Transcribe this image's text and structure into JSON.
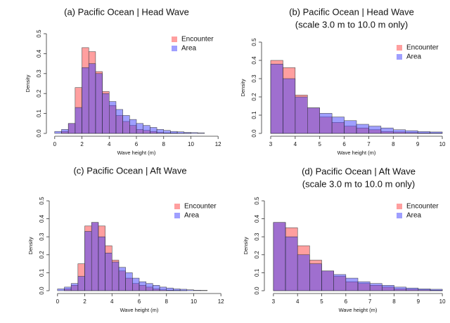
{
  "chart_data": [
    {
      "type": "histogram",
      "title": "(a)  Pacific Ocean | Head Wave",
      "x_label": "Wave height (m)",
      "y_label": "Density",
      "bins": [
        0,
        0.5,
        1,
        1.5,
        2,
        2.5,
        3,
        3.5,
        4,
        4.5,
        5,
        5.5,
        6,
        6.5,
        7,
        7.5,
        8,
        8.5,
        9,
        9.5,
        10,
        10.5,
        11
      ],
      "series": [
        {
          "name": "Encounter",
          "color": "#ff4040",
          "values": [
            0,
            0.01,
            0.05,
            0.23,
            0.43,
            0.41,
            0.31,
            0.21,
            0.14,
            0.09,
            0.06,
            0.04,
            0.02,
            0.015,
            0.01,
            0.005,
            0.003,
            0.002,
            0.001,
            0.001,
            0,
            0
          ]
        },
        {
          "name": "Area",
          "color": "#4040ff",
          "values": [
            0.01,
            0.02,
            0.05,
            0.13,
            0.33,
            0.35,
            0.3,
            0.2,
            0.16,
            0.12,
            0.09,
            0.07,
            0.05,
            0.04,
            0.03,
            0.02,
            0.015,
            0.01,
            0.008,
            0.005,
            0.004,
            0.003
          ]
        }
      ],
      "xlim": [
        -0.3,
        12.3
      ],
      "xticks": [
        0,
        2,
        4,
        6,
        8,
        10,
        12
      ],
      "ylim": [
        0,
        0.5
      ],
      "yticks": [
        {
          "value": 0,
          "label": "0.0"
        },
        0.1,
        0.2,
        0.3,
        0.4,
        0.5
      ],
      "legend": "top-right"
    },
    {
      "type": "histogram",
      "title": "(b) Pacific Ocean | Head Wave",
      "subtitle": "(scale 3.0 m to 10.0 m only)",
      "x_label": "Wave height (m)",
      "y_label": "Density",
      "bins": [
        3,
        3.5,
        4,
        4.5,
        5,
        5.5,
        6,
        6.5,
        7,
        7.5,
        8,
        8.5,
        9,
        9.5,
        10
      ],
      "series": [
        {
          "name": "Encounter",
          "color": "#ff4040",
          "values": [
            0.4,
            0.36,
            0.21,
            0.14,
            0.09,
            0.06,
            0.04,
            0.03,
            0.02,
            0.01,
            0.008,
            0.005,
            0.003,
            0.002
          ]
        },
        {
          "name": "Area",
          "color": "#4040ff",
          "values": [
            0.38,
            0.3,
            0.2,
            0.14,
            0.11,
            0.09,
            0.07,
            0.05,
            0.04,
            0.03,
            0.02,
            0.015,
            0.01,
            0.008
          ]
        }
      ],
      "xlim": [
        2.8,
        10.2
      ],
      "xticks": [
        3,
        4,
        5,
        6,
        7,
        8,
        9,
        10
      ],
      "ylim": [
        0,
        0.5
      ],
      "yticks": [
        {
          "value": 0,
          "label": "0.0"
        },
        0.1,
        0.2,
        0.3,
        0.4,
        0.5
      ],
      "legend": "top-right"
    },
    {
      "type": "histogram",
      "title": "(c) Pacific Ocean | Aft Wave",
      "x_label": "Wave height (m)",
      "y_label": "Density",
      "bins": [
        0,
        0.5,
        1,
        1.5,
        2,
        2.5,
        3,
        3.5,
        4,
        4.5,
        5,
        5.5,
        6,
        6.5,
        7,
        7.5,
        8,
        8.5,
        9,
        9.5,
        10,
        10.5,
        11
      ],
      "series": [
        {
          "name": "Encounter",
          "color": "#ff4040",
          "values": [
            0,
            0.01,
            0.03,
            0.15,
            0.36,
            0.38,
            0.36,
            0.25,
            0.17,
            0.11,
            0.07,
            0.04,
            0.03,
            0.02,
            0.01,
            0.005,
            0.003,
            0.002,
            0.001,
            0,
            0,
            0
          ]
        },
        {
          "name": "Area",
          "color": "#4040ff",
          "values": [
            0.01,
            0.02,
            0.04,
            0.08,
            0.33,
            0.38,
            0.3,
            0.21,
            0.16,
            0.13,
            0.1,
            0.07,
            0.05,
            0.04,
            0.03,
            0.02,
            0.015,
            0.01,
            0.008,
            0.005,
            0.003,
            0.002
          ]
        }
      ],
      "xlim": [
        -0.3,
        12.3
      ],
      "xticks": [
        0,
        2,
        4,
        6,
        8,
        10,
        12
      ],
      "ylim": [
        0,
        0.5
      ],
      "yticks": [
        {
          "value": 0,
          "label": "0.0"
        },
        0.1,
        0.2,
        0.3,
        0.4,
        0.5
      ],
      "legend": "top-right"
    },
    {
      "type": "histogram",
      "title": "(d) Pacific Ocean | Aft Wave",
      "subtitle": "(scale 3.0 m to 10.0 m only)",
      "x_label": "Wave height (m)",
      "y_label": "Density",
      "bins": [
        3,
        3.5,
        4,
        4.5,
        5,
        5.5,
        6,
        6.5,
        7,
        7.5,
        8,
        8.5,
        9,
        9.5,
        10
      ],
      "series": [
        {
          "name": "Encounter",
          "color": "#ff4040",
          "values": [
            0.38,
            0.35,
            0.25,
            0.17,
            0.11,
            0.08,
            0.05,
            0.04,
            0.03,
            0.02,
            0.01,
            0.008,
            0.005,
            0.003
          ]
        },
        {
          "name": "Area",
          "color": "#4040ff",
          "values": [
            0.38,
            0.3,
            0.2,
            0.15,
            0.11,
            0.09,
            0.07,
            0.05,
            0.04,
            0.03,
            0.02,
            0.015,
            0.01,
            0.008
          ]
        }
      ],
      "xlim": [
        2.8,
        10.2
      ],
      "xticks": [
        3,
        4,
        5,
        6,
        7,
        8,
        9,
        10
      ],
      "ylim": [
        0,
        0.5
      ],
      "yticks": [
        {
          "value": 0,
          "label": "0.0"
        },
        0.1,
        0.2,
        0.3,
        0.4,
        0.5
      ],
      "legend": "top-right"
    }
  ]
}
